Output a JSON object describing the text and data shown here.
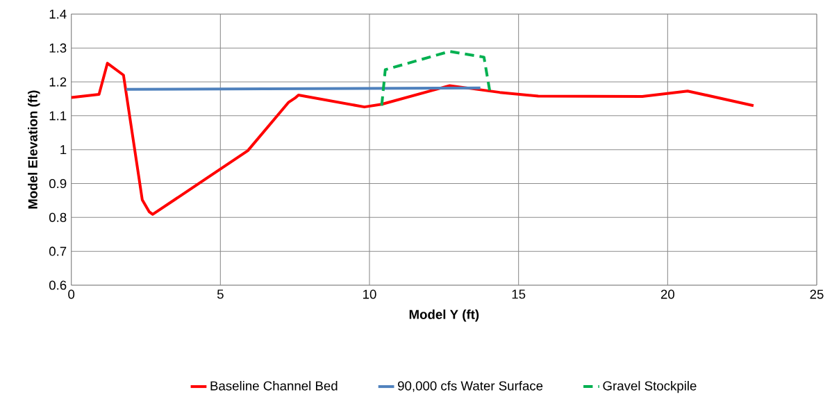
{
  "chart_data": {
    "type": "line",
    "xlabel": "Model Y (ft)",
    "ylabel": "Model Elevation (ft)",
    "xlim": [
      0,
      25
    ],
    "ylim": [
      0.6,
      1.4
    ],
    "xticks": [
      0,
      5,
      10,
      15,
      20,
      25
    ],
    "yticks": [
      0.6,
      0.7,
      0.8,
      0.9,
      1,
      1.1,
      1.2,
      1.3,
      1.4
    ],
    "grid": true,
    "legend": "bottom",
    "marker": "none",
    "series": [
      {
        "name": "Baseline Channel Bed",
        "color": "#ff0000",
        "line_style": "solid",
        "x": [
          0,
          0.93,
          1.21,
          1.75,
          2.38,
          2.61,
          2.73,
          5.92,
          7.29,
          7.5,
          7.62,
          9.83,
          10.41,
          12.69,
          14.37,
          15.66,
          19.15,
          20.67,
          22.88
        ],
        "values": [
          1.154,
          1.163,
          1.255,
          1.22,
          0.852,
          0.817,
          0.809,
          0.997,
          1.14,
          1.152,
          1.161,
          1.126,
          1.134,
          1.189,
          1.169,
          1.158,
          1.157,
          1.173,
          1.13
        ]
      },
      {
        "name": "90,000 cfs Water Surface",
        "color": "#4f81bd",
        "line_style": "solid",
        "x": [
          1.84,
          13.72
        ],
        "values": [
          1.178,
          1.182
        ]
      },
      {
        "name": "Gravel Stockpile",
        "color": "#00b050",
        "line_style": "dashed",
        "x": [
          10.41,
          10.53,
          12.69,
          13.84,
          14.03
        ],
        "values": [
          1.13,
          1.236,
          1.29,
          1.273,
          1.175
        ]
      }
    ]
  }
}
